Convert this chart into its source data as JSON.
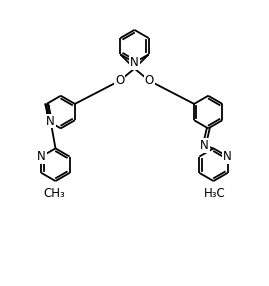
{
  "bg_color": "#ffffff",
  "line_color": "#000000",
  "line_width": 1.3,
  "font_size": 8.5,
  "figsize": [
    2.69,
    2.86
  ],
  "dpi": 100,
  "ring_r": 0.62,
  "xlim": [
    0,
    10
  ],
  "ylim": [
    0,
    10.65
  ]
}
